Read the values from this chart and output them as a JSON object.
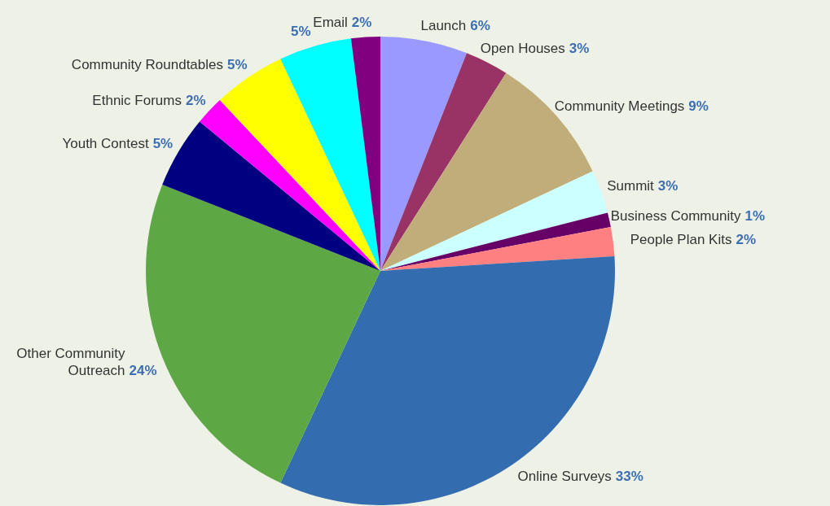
{
  "chart_data": {
    "type": "pie",
    "categories": [
      "Launch",
      "Open Houses",
      "Community Meetings",
      "Summit",
      "Business Community",
      "People Plan Kits",
      "Online Surveys",
      "Other Community Outreach",
      "Youth Contest",
      "Ethnic Forums",
      "Community Roundtables",
      null,
      "Email"
    ],
    "values": [
      6,
      3,
      9,
      3,
      1,
      2,
      33,
      24,
      5,
      2,
      5,
      5,
      2
    ],
    "colors": [
      "#9999ff",
      "#993366",
      "#c0ad7a",
      "#ccffff",
      "#660066",
      "#ff8080",
      "#336caf",
      "#5da845",
      "#000080",
      "#ff00ff",
      "#ffff00",
      "#00ffff",
      "#800080"
    ],
    "value_labels": [
      "6%",
      "3%",
      "9%",
      "3%",
      "1%",
      "2%",
      "33%",
      "24%",
      "5%",
      "2%",
      "5%",
      "5%",
      "2%"
    ]
  }
}
